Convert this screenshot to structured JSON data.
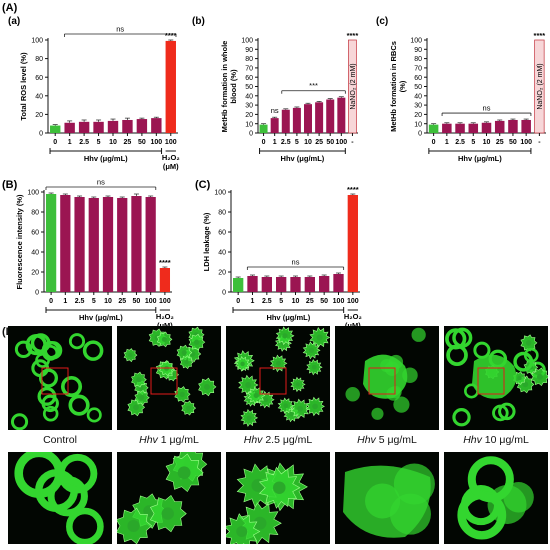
{
  "figure_labels": {
    "A": "(A)",
    "B": "(B)",
    "C": "(C)",
    "D": "(D)"
  },
  "colors": {
    "control": "#3dbf3a",
    "treatment": "#9b1552",
    "positive": "#ef2b1c",
    "nitrite": "#f7d6d8",
    "cells": "#33d62f"
  },
  "chart_data": [
    {
      "id": "a",
      "panel": "(a)",
      "type": "bar",
      "ylabel": "Total ROS level (%)",
      "ylim": [
        0,
        100
      ],
      "yticks": [
        0,
        20,
        40,
        60,
        80,
        100
      ],
      "categories": [
        "0",
        "1",
        "2.5",
        "5",
        "10",
        "25",
        "50",
        "100",
        "100"
      ],
      "values": [
        8,
        11,
        12,
        12,
        13,
        14,
        15,
        16,
        99
      ],
      "errors": [
        1,
        2,
        2,
        2,
        2,
        2,
        1,
        1,
        1
      ],
      "kinds": [
        "control",
        "hhv",
        "hhv",
        "hhv",
        "hhv",
        "hhv",
        "hhv",
        "hhv",
        "positive"
      ],
      "group_label": "Hhv (μg/mL)",
      "positive_label": "H₂O₂ (μM)",
      "brackets": [
        {
          "from": 1,
          "to": 8,
          "text": "ns"
        }
      ],
      "stars": [
        {
          "index": 8,
          "text": "****"
        }
      ]
    },
    {
      "id": "b",
      "panel": "(b)",
      "type": "bar",
      "ylabel": "MetHb formation in whole blood (%)",
      "ylim": [
        0,
        100
      ],
      "yticks": [
        0,
        10,
        20,
        30,
        40,
        50,
        60,
        70,
        80,
        90,
        100
      ],
      "categories": [
        "0",
        "1",
        "2.5",
        "5",
        "10",
        "25",
        "50",
        "100",
        "-"
      ],
      "values": [
        9,
        16,
        25,
        27,
        31,
        33,
        36,
        38,
        100
      ],
      "errors": [
        1,
        1,
        1,
        1,
        1,
        1,
        1,
        1,
        0
      ],
      "kinds": [
        "control",
        "hhv",
        "hhv",
        "hhv",
        "hhv",
        "hhv",
        "hhv",
        "hhv",
        "nitrite"
      ],
      "group_label": "Hhv (μg/mL)",
      "positive_label": "",
      "bar_text": "NaNO₂ (2 mM)",
      "brackets": [
        {
          "from": 2,
          "to": 7,
          "text": "***"
        }
      ],
      "pair_labels": [
        {
          "index": 1,
          "text": "ns"
        }
      ],
      "stars": [
        {
          "index": 8,
          "text": "****"
        }
      ]
    },
    {
      "id": "c",
      "panel": "(c)",
      "type": "bar",
      "ylabel": "MetHb formation in RBCs (%)",
      "ylim": [
        0,
        100
      ],
      "yticks": [
        0,
        10,
        20,
        30,
        40,
        50,
        60,
        70,
        80,
        90,
        100
      ],
      "categories": [
        "0",
        "1",
        "2.5",
        "5",
        "10",
        "25",
        "50",
        "100",
        "-"
      ],
      "values": [
        9,
        10,
        10,
        10,
        11,
        13,
        14,
        14,
        100
      ],
      "errors": [
        1,
        1,
        1,
        1,
        1,
        1,
        1,
        1,
        0
      ],
      "kinds": [
        "control",
        "hhv",
        "hhv",
        "hhv",
        "hhv",
        "hhv",
        "hhv",
        "hhv",
        "nitrite"
      ],
      "group_label": "Hhv (μg/mL)",
      "positive_label": "",
      "bar_text": "NaNO₂ (2 mM)",
      "brackets": [
        {
          "from": 1,
          "to": 7,
          "text": "ns"
        }
      ],
      "stars": [
        {
          "index": 8,
          "text": "****"
        }
      ]
    },
    {
      "id": "B",
      "panel": "",
      "type": "bar",
      "ylabel": "Fluorescence intensity (%)",
      "ylim": [
        0,
        100
      ],
      "yticks": [
        0,
        20,
        40,
        60,
        80,
        100
      ],
      "categories": [
        "0",
        "1",
        "2.5",
        "5",
        "10",
        "25",
        "50",
        "100",
        "100"
      ],
      "values": [
        98,
        97,
        95,
        94,
        95,
        94,
        96,
        95,
        24
      ],
      "errors": [
        1,
        1,
        1,
        1,
        1,
        1,
        2,
        1,
        1
      ],
      "kinds": [
        "control",
        "hhv",
        "hhv",
        "hhv",
        "hhv",
        "hhv",
        "hhv",
        "hhv",
        "positive"
      ],
      "group_label": "Hhv (μg/mL)",
      "positive_label": "H₂O₂ (μM)",
      "brackets": [
        {
          "from": 0,
          "to": 7,
          "text": "ns"
        }
      ],
      "stars": [
        {
          "index": 8,
          "text": "****"
        }
      ]
    },
    {
      "id": "C",
      "panel": "",
      "type": "bar",
      "ylabel": "LDH leakage (%)",
      "ylim": [
        0,
        100
      ],
      "yticks": [
        0,
        20,
        40,
        60,
        80,
        100
      ],
      "categories": [
        "0",
        "1",
        "2.5",
        "5",
        "10",
        "25",
        "50",
        "100",
        "100"
      ],
      "values": [
        14,
        16,
        15,
        15,
        15,
        15,
        16,
        18,
        97
      ],
      "errors": [
        1,
        1,
        1,
        1,
        1,
        1,
        1,
        1,
        1
      ],
      "kinds": [
        "control",
        "hhv",
        "hhv",
        "hhv",
        "hhv",
        "hhv",
        "hhv",
        "hhv",
        "positive"
      ],
      "group_label": "Hhv (μg/mL)",
      "positive_label": "H₂O₂ (μM)",
      "brackets": [
        {
          "from": 1,
          "to": 7,
          "text": "ns"
        }
      ],
      "stars": [
        {
          "index": 8,
          "text": "****"
        }
      ]
    }
  ],
  "micrographs": [
    {
      "prefix": "",
      "label": "Control",
      "shape": "disc"
    },
    {
      "prefix": "Hhv",
      "label": " 1 μg/mL",
      "shape": "crenated"
    },
    {
      "prefix": "Hhv",
      "label": " 2.5 μg/mL",
      "shape": "spiky"
    },
    {
      "prefix": "Hhv",
      "label": " 5 μg/mL",
      "shape": "fused"
    },
    {
      "prefix": "Hhv",
      "label": " 10 μg/mL",
      "shape": "mixed"
    }
  ]
}
